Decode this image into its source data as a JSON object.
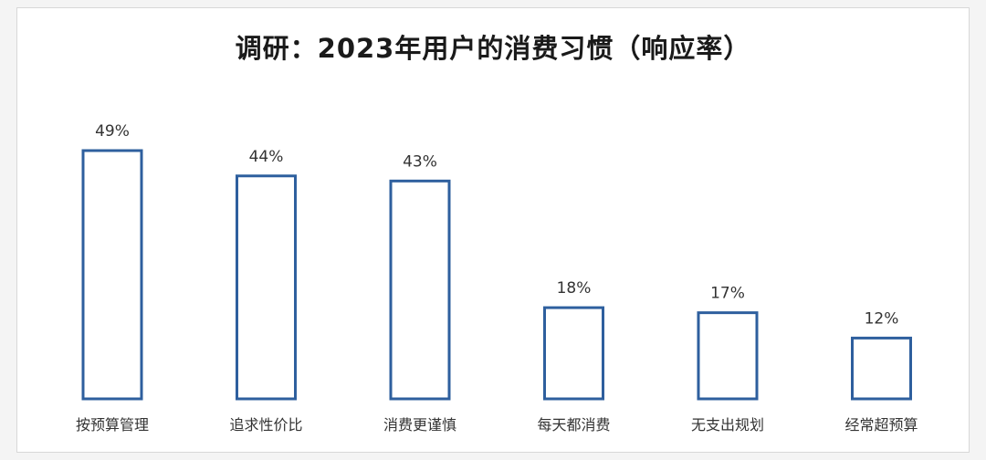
{
  "chart_data": {
    "type": "bar",
    "title": "调研：2023年用户的消费习惯（响应率）",
    "categories": [
      "按预算管理",
      "追求性价比",
      "消费更谨慎",
      "每天都消费",
      "无支出规划",
      "经常超预算"
    ],
    "values": [
      49,
      44,
      43,
      18,
      17,
      12
    ],
    "value_labels": [
      "49%",
      "44%",
      "43%",
      "18%",
      "17%",
      "12%"
    ],
    "unit": "%",
    "ylim": [
      0,
      49
    ],
    "grid": false,
    "legend": "none",
    "bar_style": "outline",
    "bar_color": "#2e5f9e"
  }
}
